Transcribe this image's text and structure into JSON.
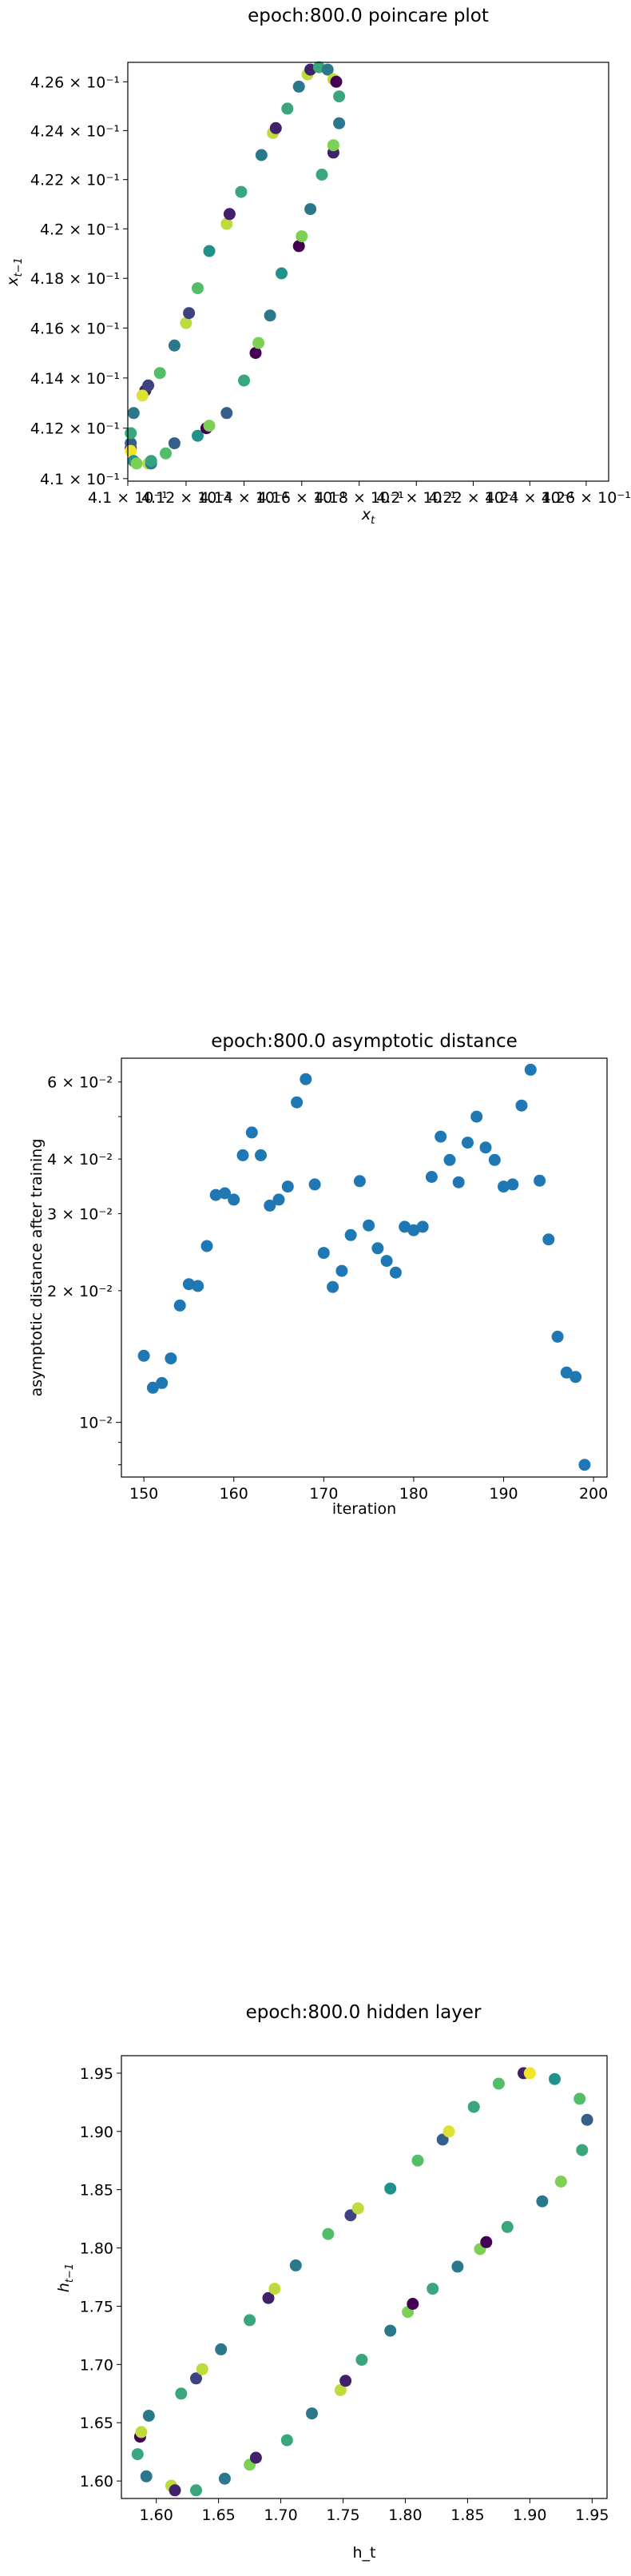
{
  "chart_data": [
    {
      "type": "scatter",
      "title": "epoch:800.0 poincare plot",
      "xlabel": "x",
      "xlabel_sub": "t",
      "ylabel": "x",
      "ylabel_sub": "t−1",
      "xscale": "log",
      "yscale": "log",
      "xlim": [
        0.41,
        0.4268
      ],
      "ylim": [
        0.4099,
        0.4268
      ],
      "xtick_values": [
        0.41,
        0.412,
        0.414,
        0.416,
        0.418,
        0.42,
        0.422,
        0.424,
        0.426
      ],
      "xtick_labels": [
        "4.1 × 10⁻¹",
        "4.12 × 10⁻¹",
        "4.14 × 10⁻¹",
        "4.16 × 10⁻¹",
        "4.18 × 10⁻¹",
        "4.2 × 10⁻¹",
        "4.22 × 10⁻¹",
        "4.24 × 10⁻¹",
        "4.26 × 10⁻¹"
      ],
      "ytick_values": [
        0.41,
        0.412,
        0.414,
        0.416,
        0.418,
        0.42,
        0.422,
        0.424,
        0.426
      ],
      "ytick_labels": [
        "4.1 × 10⁻¹",
        "4.12 × 10⁻¹",
        "4.14 × 10⁻¹",
        "4.16 × 10⁻¹",
        "4.18 × 10⁻¹",
        "4.2 × 10⁻¹",
        "4.22 × 10⁻¹",
        "4.24 × 10⁻¹",
        "4.26 × 10⁻¹"
      ],
      "colormap": "viridis",
      "points": [
        {
          "x": 0.4101,
          "y": 0.4112,
          "c": 0.0
        },
        {
          "x": 0.4101,
          "y": 0.4114,
          "c": 0.3
        },
        {
          "x": 0.4101,
          "y": 0.4111,
          "c": 0.98
        },
        {
          "x": 0.4101,
          "y": 0.4118,
          "c": 0.6
        },
        {
          "x": 0.4102,
          "y": 0.4107,
          "c": 0.5
        },
        {
          "x": 0.4103,
          "y": 0.4106,
          "c": 0.8
        },
        {
          "x": 0.4102,
          "y": 0.4126,
          "c": 0.4
        },
        {
          "x": 0.4106,
          "y": 0.4135,
          "c": 0.1
        },
        {
          "x": 0.4107,
          "y": 0.4137,
          "c": 0.2
        },
        {
          "x": 0.4105,
          "y": 0.4133,
          "c": 0.95
        },
        {
          "x": 0.4107,
          "y": 0.4106,
          "c": 0.9
        },
        {
          "x": 0.4108,
          "y": 0.4106,
          "c": 0.4
        },
        {
          "x": 0.4108,
          "y": 0.4107,
          "c": 0.58
        },
        {
          "x": 0.4111,
          "y": 0.4142,
          "c": 0.7
        },
        {
          "x": 0.4113,
          "y": 0.411,
          "c": 0.7
        },
        {
          "x": 0.4116,
          "y": 0.4114,
          "c": 0.3
        },
        {
          "x": 0.4116,
          "y": 0.4153,
          "c": 0.4
        },
        {
          "x": 0.412,
          "y": 0.4162,
          "c": 0.9
        },
        {
          "x": 0.4121,
          "y": 0.4166,
          "c": 0.2
        },
        {
          "x": 0.4124,
          "y": 0.4176,
          "c": 0.7
        },
        {
          "x": 0.4124,
          "y": 0.4117,
          "c": 0.5
        },
        {
          "x": 0.4127,
          "y": 0.412,
          "c": 0.0
        },
        {
          "x": 0.4128,
          "y": 0.4121,
          "c": 0.8
        },
        {
          "x": 0.4128,
          "y": 0.4191,
          "c": 0.5
        },
        {
          "x": 0.4134,
          "y": 0.4202,
          "c": 0.9
        },
        {
          "x": 0.4135,
          "y": 0.4206,
          "c": 0.1
        },
        {
          "x": 0.4139,
          "y": 0.4215,
          "c": 0.6
        },
        {
          "x": 0.4134,
          "y": 0.4126,
          "c": 0.3
        },
        {
          "x": 0.414,
          "y": 0.4139,
          "c": 0.6
        },
        {
          "x": 0.4144,
          "y": 0.415,
          "c": 0.0
        },
        {
          "x": 0.4145,
          "y": 0.4154,
          "c": 0.8
        },
        {
          "x": 0.4146,
          "y": 0.423,
          "c": 0.4
        },
        {
          "x": 0.415,
          "y": 0.4239,
          "c": 0.9
        },
        {
          "x": 0.4151,
          "y": 0.4241,
          "c": 0.1
        },
        {
          "x": 0.4149,
          "y": 0.4165,
          "c": 0.4
        },
        {
          "x": 0.4155,
          "y": 0.4249,
          "c": 0.6
        },
        {
          "x": 0.4153,
          "y": 0.4182,
          "c": 0.5
        },
        {
          "x": 0.4159,
          "y": 0.4258,
          "c": 0.4
        },
        {
          "x": 0.4159,
          "y": 0.4193,
          "c": 0.0
        },
        {
          "x": 0.416,
          "y": 0.4197,
          "c": 0.8
        },
        {
          "x": 0.4162,
          "y": 0.4263,
          "c": 0.9
        },
        {
          "x": 0.4163,
          "y": 0.4265,
          "c": 0.1
        },
        {
          "x": 0.4163,
          "y": 0.4208,
          "c": 0.4
        },
        {
          "x": 0.4166,
          "y": 0.4266,
          "c": 0.6
        },
        {
          "x": 0.4167,
          "y": 0.4222,
          "c": 0.6
        },
        {
          "x": 0.4169,
          "y": 0.4265,
          "c": 0.4
        },
        {
          "x": 0.4171,
          "y": 0.4231,
          "c": 0.1
        },
        {
          "x": 0.4171,
          "y": 0.4234,
          "c": 0.8
        },
        {
          "x": 0.4171,
          "y": 0.4261,
          "c": 0.9
        },
        {
          "x": 0.4172,
          "y": 0.426,
          "c": 0.0
        },
        {
          "x": 0.4173,
          "y": 0.4243,
          "c": 0.4
        },
        {
          "x": 0.4173,
          "y": 0.4254,
          "c": 0.6
        }
      ]
    },
    {
      "type": "scatter",
      "title": "epoch:800.0 asymptotic distance",
      "xlabel": "iteration",
      "ylabel": "asymptotic distance after training",
      "yscale": "log",
      "xlim": [
        147.5,
        201.5
      ],
      "ylim": [
        0.0075,
        0.068
      ],
      "xticks": [
        150,
        160,
        170,
        180,
        190,
        200
      ],
      "yticks_major": [
        0.01
      ],
      "yticks_major_labels": [
        "10⁻²"
      ],
      "yticks_minor": [
        0.02,
        0.03,
        0.04,
        0.06
      ],
      "yticks_minor_labels": [
        "2 × 10⁻²",
        "3 × 10⁻²",
        "4 × 10⁻²",
        "6 × 10⁻²"
      ],
      "yticks_minor_unlabeled": [
        0.008,
        0.009,
        0.05
      ],
      "color": "#1f77b4",
      "x": [
        150,
        151,
        152,
        153,
        154,
        155,
        156,
        157,
        158,
        159,
        160,
        161,
        162,
        163,
        164,
        165,
        166,
        167,
        168,
        169,
        170,
        171,
        172,
        173,
        174,
        175,
        176,
        177,
        178,
        179,
        180,
        181,
        182,
        183,
        184,
        185,
        186,
        187,
        188,
        189,
        190,
        191,
        192,
        193,
        194,
        195,
        196,
        197,
        198,
        199
      ],
      "y": [
        0.0142,
        0.012,
        0.0123,
        0.014,
        0.0185,
        0.0207,
        0.0205,
        0.0253,
        0.0331,
        0.0334,
        0.0323,
        0.0408,
        0.046,
        0.0408,
        0.0313,
        0.0323,
        0.0346,
        0.0539,
        0.0609,
        0.035,
        0.0244,
        0.0204,
        0.0222,
        0.0268,
        0.0356,
        0.0282,
        0.025,
        0.0234,
        0.022,
        0.028,
        0.0275,
        0.028,
        0.0364,
        0.045,
        0.0398,
        0.0354,
        0.0436,
        0.05,
        0.0425,
        0.0398,
        0.0346,
        0.035,
        0.053,
        0.064,
        0.0357,
        0.0262,
        0.0157,
        0.013,
        0.0127,
        0.008
      ]
    },
    {
      "type": "scatter",
      "title": "epoch:800.0 hidden layer",
      "xlabel": "h_t",
      "ylabel": "h",
      "ylabel_sub": "t−1",
      "xlim": [
        1.572,
        1.962
      ],
      "ylim": [
        1.585,
        1.965
      ],
      "xticks": [
        1.6,
        1.65,
        1.7,
        1.75,
        1.8,
        1.85,
        1.9,
        1.95
      ],
      "yticks": [
        1.6,
        1.65,
        1.7,
        1.75,
        1.8,
        1.85,
        1.9,
        1.95
      ],
      "colormap": "viridis",
      "points": [
        {
          "x": 1.585,
          "y": 1.623,
          "c": 0.6
        },
        {
          "x": 1.587,
          "y": 1.638,
          "c": 0.0
        },
        {
          "x": 1.588,
          "y": 1.642,
          "c": 0.9
        },
        {
          "x": 1.592,
          "y": 1.604,
          "c": 0.4
        },
        {
          "x": 1.594,
          "y": 1.656,
          "c": 0.4
        },
        {
          "x": 1.612,
          "y": 1.596,
          "c": 0.9
        },
        {
          "x": 1.615,
          "y": 1.592,
          "c": 0.1
        },
        {
          "x": 1.62,
          "y": 1.675,
          "c": 0.6
        },
        {
          "x": 1.632,
          "y": 1.592,
          "c": 0.6
        },
        {
          "x": 1.632,
          "y": 1.688,
          "c": 0.2
        },
        {
          "x": 1.637,
          "y": 1.696,
          "c": 0.9
        },
        {
          "x": 1.652,
          "y": 1.713,
          "c": 0.4
        },
        {
          "x": 1.655,
          "y": 1.602,
          "c": 0.4
        },
        {
          "x": 1.675,
          "y": 1.614,
          "c": 0.8
        },
        {
          "x": 1.68,
          "y": 1.62,
          "c": 0.1
        },
        {
          "x": 1.675,
          "y": 1.738,
          "c": 0.6
        },
        {
          "x": 1.69,
          "y": 1.757,
          "c": 0.1
        },
        {
          "x": 1.695,
          "y": 1.765,
          "c": 0.9
        },
        {
          "x": 1.705,
          "y": 1.635,
          "c": 0.6
        },
        {
          "x": 1.712,
          "y": 1.785,
          "c": 0.4
        },
        {
          "x": 1.725,
          "y": 1.658,
          "c": 0.4
        },
        {
          "x": 1.738,
          "y": 1.812,
          "c": 0.7
        },
        {
          "x": 1.748,
          "y": 1.678,
          "c": 0.9
        },
        {
          "x": 1.752,
          "y": 1.686,
          "c": 0.1
        },
        {
          "x": 1.756,
          "y": 1.828,
          "c": 0.2
        },
        {
          "x": 1.762,
          "y": 1.834,
          "c": 0.9
        },
        {
          "x": 1.765,
          "y": 1.704,
          "c": 0.6
        },
        {
          "x": 1.788,
          "y": 1.729,
          "c": 0.4
        },
        {
          "x": 1.788,
          "y": 1.851,
          "c": 0.5
        },
        {
          "x": 1.802,
          "y": 1.745,
          "c": 0.8
        },
        {
          "x": 1.806,
          "y": 1.752,
          "c": 0.0
        },
        {
          "x": 1.81,
          "y": 1.875,
          "c": 0.7
        },
        {
          "x": 1.822,
          "y": 1.765,
          "c": 0.6
        },
        {
          "x": 1.83,
          "y": 1.893,
          "c": 0.3
        },
        {
          "x": 1.835,
          "y": 1.9,
          "c": 0.95
        },
        {
          "x": 1.842,
          "y": 1.784,
          "c": 0.4
        },
        {
          "x": 1.855,
          "y": 1.921,
          "c": 0.6
        },
        {
          "x": 1.86,
          "y": 1.799,
          "c": 0.8
        },
        {
          "x": 1.865,
          "y": 1.805,
          "c": 0.0
        },
        {
          "x": 1.875,
          "y": 1.941,
          "c": 0.7
        },
        {
          "x": 1.882,
          "y": 1.818,
          "c": 0.6
        },
        {
          "x": 1.895,
          "y": 1.95,
          "c": 0.1
        },
        {
          "x": 1.9,
          "y": 1.95,
          "c": 0.98
        },
        {
          "x": 1.91,
          "y": 1.84,
          "c": 0.4
        },
        {
          "x": 1.92,
          "y": 1.945,
          "c": 0.5
        },
        {
          "x": 1.925,
          "y": 1.857,
          "c": 0.8
        },
        {
          "x": 1.94,
          "y": 1.928,
          "c": 0.7
        },
        {
          "x": 1.942,
          "y": 1.884,
          "c": 0.6
        },
        {
          "x": 1.946,
          "y": 1.91,
          "c": 0.3
        }
      ]
    }
  ]
}
